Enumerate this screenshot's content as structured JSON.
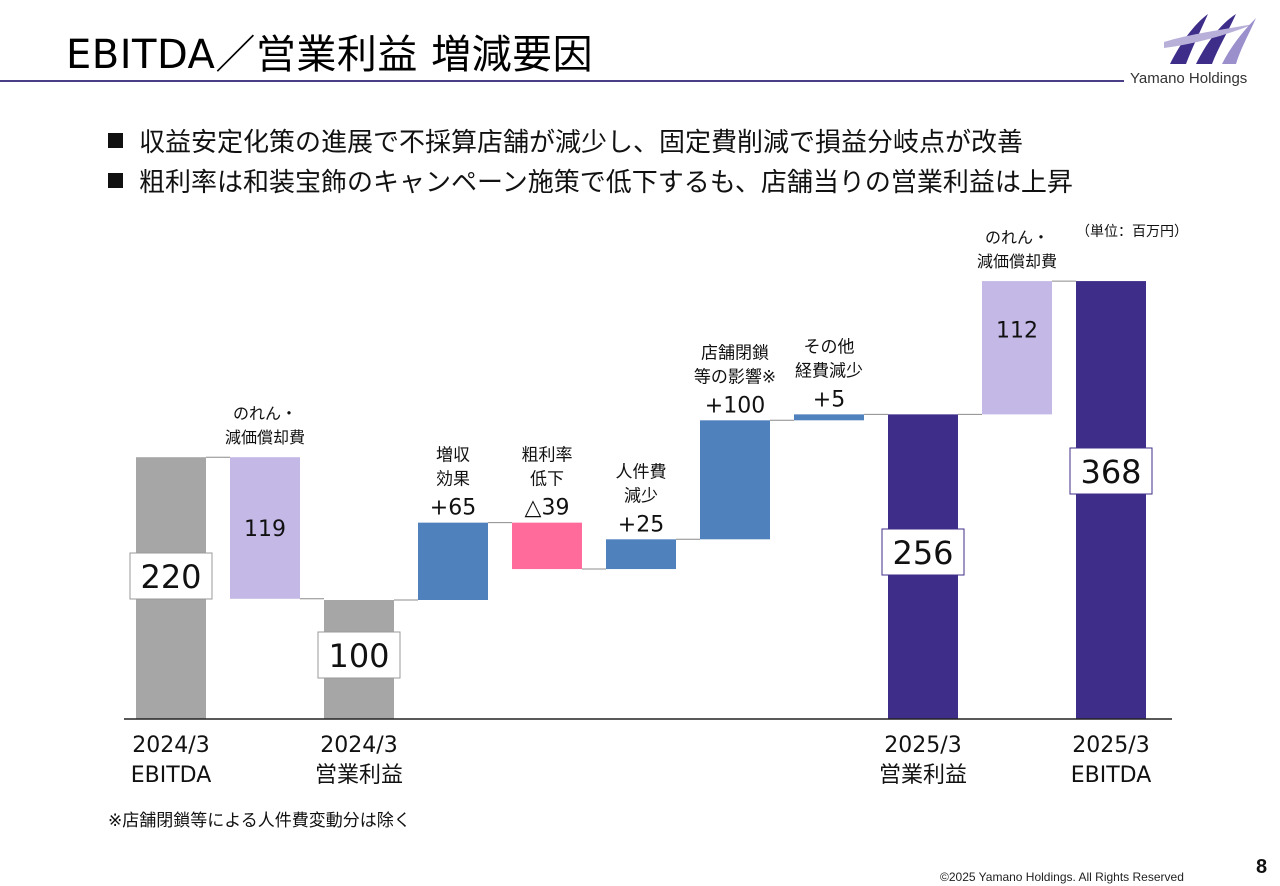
{
  "header": {
    "title": "EBITDA／営業利益 増減要因",
    "brand": "Yamano Holdings"
  },
  "bullets": [
    "収益安定化策の進展で不採算店舗が減少し、固定費削減で損益分岐点が改善",
    "粗利率は和装宝飾のキャンペーン施策で低下するも、店舗当りの営業利益は上昇"
  ],
  "unit_label": "（単位：百万円）",
  "chart_data": {
    "type": "waterfall",
    "unit": "百万円",
    "bars": [
      {
        "kind": "total",
        "value": 220,
        "value_label": "220",
        "axis_label": [
          "2024/3",
          "EBITDA"
        ],
        "color": "#a6a6a6"
      },
      {
        "kind": "decrease",
        "value": 119,
        "value_label": "119",
        "top_label": [
          "のれん・",
          "減価償却費"
        ],
        "color": "#c4b8e6"
      },
      {
        "kind": "total",
        "value": 100,
        "value_label": "100",
        "axis_label": [
          "2024/3",
          "営業利益"
        ],
        "color": "#a6a6a6"
      },
      {
        "kind": "increase",
        "value": 65,
        "value_label": "+65",
        "top_label": [
          "増収",
          "効果"
        ],
        "color": "#4f81bd"
      },
      {
        "kind": "decrease",
        "value": 39,
        "value_label": "△39",
        "top_label": [
          "粗利率",
          "低下"
        ],
        "color": "#ff6b9a"
      },
      {
        "kind": "increase",
        "value": 25,
        "value_label": "+25",
        "top_label": [
          "人件費",
          "減少"
        ],
        "color": "#4f81bd"
      },
      {
        "kind": "increase",
        "value": 100,
        "value_label": "+100",
        "top_label": [
          "店舗閉鎖",
          "等の影響※"
        ],
        "color": "#4f81bd"
      },
      {
        "kind": "increase",
        "value": 5,
        "value_label": "+5",
        "top_label": [
          "その他",
          "経費減少"
        ],
        "color": "#4f81bd"
      },
      {
        "kind": "total",
        "value": 256,
        "value_label": "256",
        "axis_label": [
          "2025/3",
          "営業利益"
        ],
        "color": "#3f2d8a"
      },
      {
        "kind": "increase",
        "value": 112,
        "value_label": "112",
        "top_label": [
          "のれん・",
          "減価償却費"
        ],
        "color": "#c4b8e6"
      },
      {
        "kind": "total",
        "value": 368,
        "value_label": "368",
        "axis_label": [
          "2025/3",
          "EBITDA"
        ],
        "color": "#3f2d8a"
      }
    ]
  },
  "footnote": "※店舗閉鎖等による人件費変動分は除く",
  "copyright": "©2025 Yamano Holdings. All Rights Reserved",
  "page_number": "8"
}
